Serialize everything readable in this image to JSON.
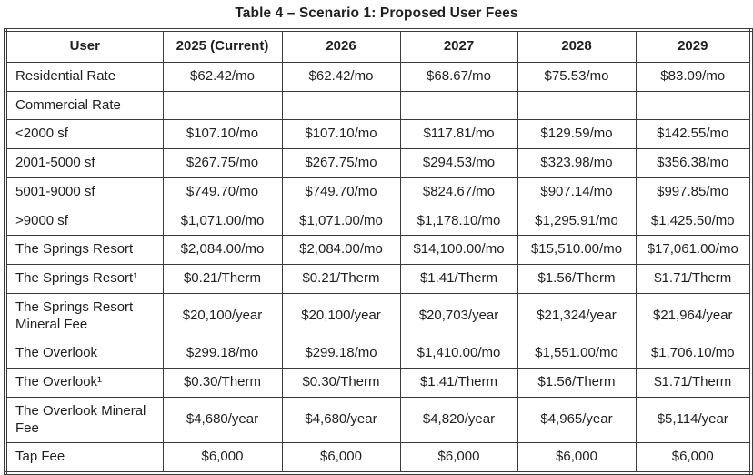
{
  "title": "Table 4 – Scenario 1: Proposed User Fees",
  "table": {
    "columns": [
      "User",
      "2025 (Current)",
      "2026",
      "2027",
      "2028",
      "2029"
    ],
    "rows": [
      {
        "user": "Residential Rate",
        "values": [
          "$62.42/mo",
          "$62.42/mo",
          "$68.67/mo",
          "$75.53/mo",
          "$83.09/mo"
        ]
      },
      {
        "user": "Commercial Rate",
        "values": [
          "",
          "",
          "",
          "",
          ""
        ]
      },
      {
        "user": "<2000 sf",
        "values": [
          "$107.10/mo",
          "$107.10/mo",
          "$117.81/mo",
          "$129.59/mo",
          "$142.55/mo"
        ]
      },
      {
        "user": "2001-5000 sf",
        "values": [
          "$267.75/mo",
          "$267.75/mo",
          "$294.53/mo",
          "$323.98/mo",
          "$356.38/mo"
        ]
      },
      {
        "user": "5001-9000 sf",
        "values": [
          "$749.70/mo",
          "$749.70/mo",
          "$824.67/mo",
          "$907.14/mo",
          "$997.85/mo"
        ]
      },
      {
        "user": ">9000 sf",
        "values": [
          "$1,071.00/mo",
          "$1,071.00/mo",
          "$1,178.10/mo",
          "$1,295.91/mo",
          "$1,425.50/mo"
        ]
      },
      {
        "user": "The Springs Resort",
        "values": [
          "$2,084.00/mo",
          "$2,084.00/mo",
          "$14,100.00/mo",
          "$15,510.00/mo",
          "$17,061.00/mo"
        ]
      },
      {
        "user": "The Springs Resort¹",
        "values": [
          "$0.21/Therm",
          "$0.21/Therm",
          "$1.41/Therm",
          "$1.56/Therm",
          "$1.71/Therm"
        ]
      },
      {
        "user": "The Springs Resort Mineral Fee",
        "values": [
          "$20,100/year",
          "$20,100/year",
          "$20,703/year",
          "$21,324/year",
          "$21,964/year"
        ]
      },
      {
        "user": "The Overlook",
        "values": [
          "$299.18/mo",
          "$299.18/mo",
          "$1,410.00/mo",
          "$1,551.00/mo",
          "$1,706.10/mo"
        ]
      },
      {
        "user": "The Overlook¹",
        "values": [
          "$0.30/Therm",
          "$0.30/Therm",
          "$1.41/Therm",
          "$1.56/Therm",
          "$1.71/Therm"
        ]
      },
      {
        "user": "The Overlook Mineral Fee",
        "values": [
          "$4,680/year",
          "$4,680/year",
          "$4,820/year",
          "$4,965/year",
          "$5,114/year"
        ]
      },
      {
        "user": "Tap Fee",
        "values": [
          "$6,000",
          "$6,000",
          "$6,000",
          "$6,000",
          "$6,000"
        ]
      }
    ]
  }
}
